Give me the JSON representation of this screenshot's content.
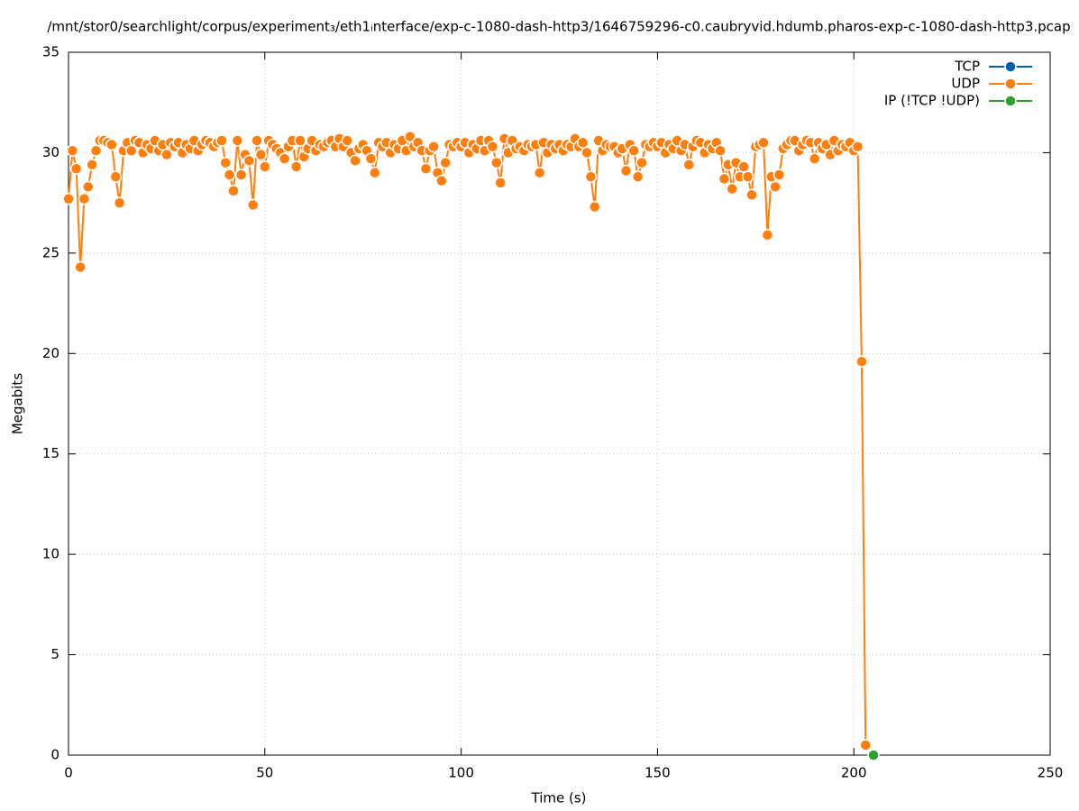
{
  "chart_data": {
    "type": "line",
    "title": "/mnt/stor0/searchlight/corpus/experiment₃/eth1ᵢnterface/exp-c-1080-dash-http3/1646759296-c0.caubryvid.hdumb.pharos-exp-c-1080-dash-http3.pcap",
    "x_label": "Time (s)",
    "y_label": "Megabits",
    "xlim": [
      0,
      250
    ],
    "xticks": [
      0,
      50,
      100,
      150,
      200,
      250
    ],
    "ylim": [
      0,
      35
    ],
    "yticks": [
      0,
      5,
      10,
      15,
      20,
      25,
      30,
      35
    ],
    "grid": true,
    "legend": "top-right",
    "series": [
      {
        "name": "TCP",
        "color": "#0060ad",
        "x": [],
        "values": []
      },
      {
        "name": "UDP",
        "color": "#ff7f0e",
        "x": [
          0,
          1,
          2,
          3,
          4,
          5,
          6,
          7,
          8,
          9,
          10,
          11,
          12,
          13,
          14,
          15,
          16,
          17,
          18,
          19,
          20,
          21,
          22,
          23,
          24,
          25,
          26,
          27,
          28,
          29,
          30,
          31,
          32,
          33,
          34,
          35,
          36,
          37,
          38,
          39,
          40,
          41,
          42,
          43,
          44,
          45,
          46,
          47,
          48,
          49,
          50,
          51,
          52,
          53,
          54,
          55,
          56,
          57,
          58,
          59,
          60,
          61,
          62,
          63,
          64,
          65,
          66,
          67,
          68,
          69,
          70,
          71,
          72,
          73,
          74,
          75,
          76,
          77,
          78,
          79,
          80,
          81,
          82,
          83,
          84,
          85,
          86,
          87,
          88,
          89,
          90,
          91,
          92,
          93,
          94,
          95,
          96,
          97,
          98,
          99,
          100,
          101,
          102,
          103,
          104,
          105,
          106,
          107,
          108,
          109,
          110,
          111,
          112,
          113,
          114,
          115,
          116,
          117,
          118,
          119,
          120,
          121,
          122,
          123,
          124,
          125,
          126,
          127,
          128,
          129,
          130,
          131,
          132,
          133,
          134,
          135,
          136,
          137,
          138,
          139,
          140,
          141,
          142,
          143,
          144,
          145,
          146,
          147,
          148,
          149,
          150,
          151,
          152,
          153,
          154,
          155,
          156,
          157,
          158,
          159,
          160,
          161,
          162,
          163,
          164,
          165,
          166,
          167,
          168,
          169,
          170,
          171,
          172,
          173,
          174,
          175,
          176,
          177,
          178,
          179,
          180,
          181,
          182,
          183,
          184,
          185,
          186,
          187,
          188,
          189,
          190,
          191,
          192,
          193,
          194,
          195,
          196,
          197,
          198,
          199,
          200,
          201,
          202,
          203
        ],
        "values": [
          27.7,
          30.1,
          29.2,
          24.3,
          27.7,
          28.3,
          29.4,
          30.1,
          30.6,
          30.6,
          30.5,
          30.4,
          28.8,
          27.5,
          30.1,
          30.5,
          30.1,
          30.6,
          30.5,
          30.0,
          30.4,
          30.2,
          30.6,
          30.1,
          30.4,
          29.9,
          30.5,
          30.3,
          30.5,
          30.0,
          30.4,
          30.2,
          30.6,
          30.1,
          30.4,
          30.6,
          30.5,
          30.3,
          30.5,
          30.6,
          29.5,
          28.9,
          28.1,
          30.6,
          28.9,
          29.9,
          29.6,
          27.4,
          30.6,
          29.9,
          29.3,
          30.6,
          30.4,
          30.2,
          30.0,
          29.7,
          30.3,
          30.6,
          29.3,
          30.6,
          29.8,
          30.2,
          30.6,
          30.1,
          30.4,
          30.3,
          30.5,
          30.6,
          30.3,
          30.7,
          30.3,
          30.6,
          30.0,
          29.6,
          30.2,
          30.4,
          30.1,
          29.7,
          29.0,
          30.5,
          30.3,
          30.5,
          30.0,
          30.4,
          30.2,
          30.6,
          30.1,
          30.8,
          30.3,
          30.5,
          30.1,
          29.2,
          30.1,
          30.3,
          29.0,
          28.6,
          29.5,
          30.4,
          30.3,
          30.5,
          30.3,
          30.5,
          30.0,
          30.4,
          30.2,
          30.6,
          30.1,
          30.6,
          30.3,
          29.5,
          28.5,
          30.7,
          30.0,
          30.6,
          30.2,
          30.3,
          30.1,
          30.4,
          30.3,
          30.4,
          29.0,
          30.5,
          30.0,
          30.4,
          30.2,
          30.4,
          30.1,
          30.4,
          30.3,
          30.7,
          30.3,
          30.5,
          30.0,
          28.8,
          27.3,
          30.6,
          30.1,
          30.4,
          30.3,
          30.3,
          30.0,
          30.2,
          29.1,
          30.4,
          30.1,
          28.8,
          29.5,
          30.4,
          30.3,
          30.5,
          30.3,
          30.5,
          30.0,
          30.4,
          30.2,
          30.6,
          30.1,
          30.4,
          29.4,
          30.3,
          30.6,
          30.5,
          30.0,
          30.4,
          30.2,
          30.5,
          30.1,
          28.7,
          29.4,
          28.2,
          29.5,
          28.8,
          29.3,
          28.8,
          27.9,
          30.3,
          30.4,
          30.5,
          25.9,
          28.8,
          28.3,
          28.9,
          30.2,
          30.4,
          30.6,
          30.6,
          30.1,
          30.4,
          30.6,
          30.5,
          29.7,
          30.5,
          30.2,
          30.4,
          29.9,
          30.6,
          30.1,
          30.4,
          30.3,
          30.5,
          30.1,
          30.3,
          19.6,
          0.5
        ]
      },
      {
        "name": "IP (!TCP  !UDP)",
        "color": "#2ca02c",
        "x": [
          205
        ],
        "values": [
          0
        ]
      }
    ]
  }
}
